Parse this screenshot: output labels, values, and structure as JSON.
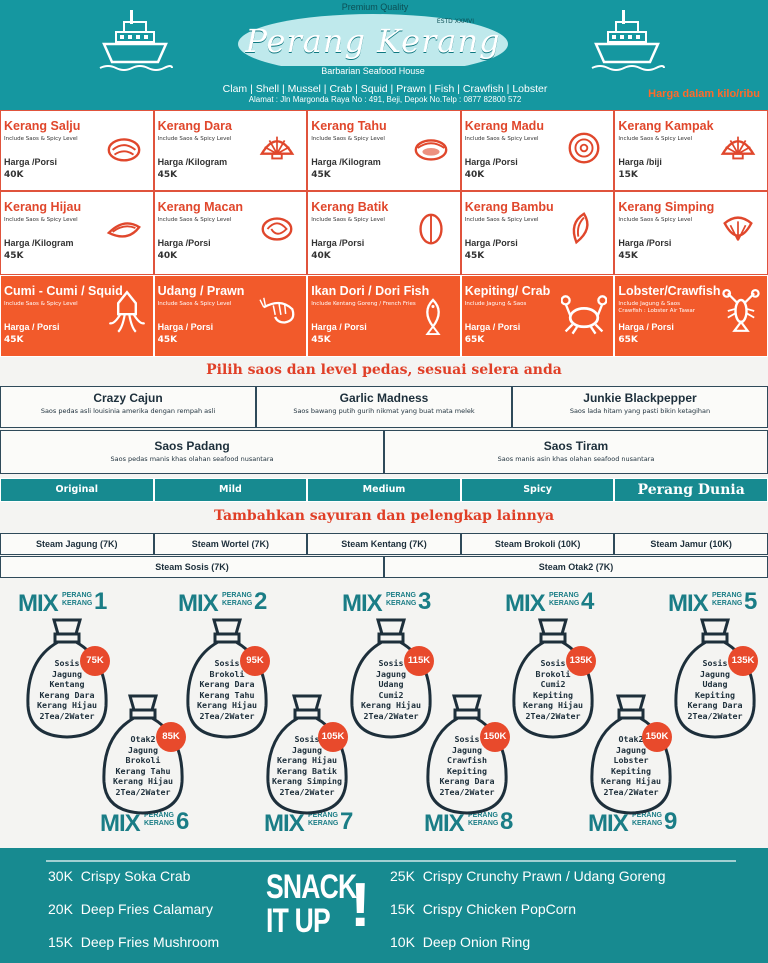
{
  "header": {
    "premium": "Premium Quality",
    "brand": "Perang Kerang",
    "estd": "ESTD XXMVI",
    "tagline": "Barbarian Seafood House",
    "categories": "Clam | Shell | Mussel | Crab | Squid | Prawn | Fish | Crawfish | Lobster",
    "address": "Alamat : Jln Margonda Raya No : 491, Beji, Depok No.Telp : 0877 82800 572",
    "price_note": "Harga dalam kilo/ribu"
  },
  "menu": {
    "row1": [
      {
        "name": "Kerang Salju",
        "sub": "Include Saos & Spicy Level",
        "price_label": "Harga /Porsi",
        "price": "40K",
        "icon": "clam-icon"
      },
      {
        "name": "Kerang Dara",
        "sub": "Include Saos & Spicy Level",
        "price_label": "Harga /Kilogram",
        "price": "45K",
        "icon": "scallop-icon"
      },
      {
        "name": "Kerang Tahu",
        "sub": "Include Saos & Spicy Level",
        "price_label": "Harga /Kilogram",
        "price": "45K",
        "icon": "clam-icon"
      },
      {
        "name": "Kerang Madu",
        "sub": "Include Saos & Spicy Level",
        "price_label": "Harga /Porsi",
        "price": "40K",
        "icon": "spiral-shell-icon"
      },
      {
        "name": "Kerang Kampak",
        "sub": "Include Saos & Spicy Level",
        "price_label": "Harga /biji",
        "price": "15K",
        "icon": "scallop-icon"
      }
    ],
    "row2": [
      {
        "name": "Kerang Hijau",
        "sub": "Include Saos & Spicy Level",
        "price_label": "Harga /Kilogram",
        "price": "45K",
        "icon": "mussel-icon"
      },
      {
        "name": "Kerang Macan",
        "sub": "Include Saos & Spicy Level",
        "price_label": "Harga /Porsi",
        "price": "40K",
        "icon": "snail-shell-icon"
      },
      {
        "name": "Kerang Batik",
        "sub": "Include Saos & Spicy Level",
        "price_label": "Harga /Porsi",
        "price": "40K",
        "icon": "clam-icon"
      },
      {
        "name": "Kerang Bambu",
        "sub": "Include Saos & Spicy Level",
        "price_label": "Harga /Porsi",
        "price": "45K",
        "icon": "razor-clam-icon"
      },
      {
        "name": "Kerang Simping",
        "sub": "Include Saos & Spicy Level",
        "price_label": "Harga /Porsi",
        "price": "45K",
        "icon": "scallop-icon"
      }
    ],
    "row3": [
      {
        "name": "Cumi - Cumi / Squid",
        "sub": "Include Saos & Spicy Level",
        "price_label": "Harga / Porsi",
        "price": "45K",
        "icon": "squid-icon"
      },
      {
        "name": "Udang / Prawn",
        "sub": "Include Saos & Spicy Level",
        "price_label": "Harga / Porsi",
        "price": "45K",
        "icon": "shrimp-icon"
      },
      {
        "name": "Ikan Dori / Dori Fish",
        "sub": "Include Kentang Goreng / French Fries",
        "price_label": "Harga / Porsi",
        "price": "45K",
        "icon": "fish-icon"
      },
      {
        "name": "Kepiting/ Crab",
        "sub": "Include Jagung & Saos",
        "price_label": "Harga / Porsi",
        "price": "65K",
        "icon": "crab-icon"
      },
      {
        "name": "Lobster/Crawfish",
        "sub": "Include Jagung & Saos",
        "sub2": "Crawfish : Lobster Air Tawar",
        "price_label": "Harga / Porsi",
        "price": "65K",
        "icon": "lobster-icon"
      }
    ]
  },
  "sauce_banner": "Pilih saos dan level pedas, sesuai selera anda",
  "sauces_row1": [
    {
      "name": "Crazy Cajun",
      "desc": "Saos pedas asli louisinia amerika dengan rempah asli"
    },
    {
      "name": "Garlic Madness",
      "desc": "Saos bawang putih gurih nikmat yang buat mata melek"
    },
    {
      "name": "Junkie Blackpepper",
      "desc": "Saos lada hitam yang pasti bikin ketagihan"
    }
  ],
  "sauces_row2": [
    {
      "name": "Saos Padang",
      "desc": "Saos pedas manis khas olahan seafood nusantara"
    },
    {
      "name": "Saos Tiram",
      "desc": "Saos manis asin khas olahan seafood nusantara"
    }
  ],
  "levels": [
    "Original",
    "Mild",
    "Medium",
    "Spicy",
    "Perang Dunia"
  ],
  "veg_banner": "Tambahkan sayuran dan pelengkap lainnya",
  "veg_row1": [
    "Steam Jagung (7K)",
    "Steam Wortel (7K)",
    "Steam Kentang (7K)",
    "Steam Brokoli (10K)",
    "Steam Jamur (10K)"
  ],
  "veg_row2": [
    "Steam Sosis (7K)",
    "Steam Otak2 (7K)"
  ],
  "mix": {
    "prefix": "MIX",
    "word1": "PERANG",
    "word2": "KERANG",
    "packs": [
      {
        "num": "1",
        "price": "75K",
        "items": [
          "Sosis",
          "Jagung",
          "Kentang",
          "Kerang Dara",
          "Kerang Hijau",
          "2Tea/2Water"
        ]
      },
      {
        "num": "2",
        "price": "95K",
        "items": [
          "Sosis",
          "Brokoli",
          "Kerang Dara",
          "Kerang Tahu",
          "Kerang Hijau",
          "2Tea/2Water"
        ]
      },
      {
        "num": "3",
        "price": "115K",
        "items": [
          "Sosis",
          "Jagung",
          "Udang",
          "Cumi2",
          "Kerang Hijau",
          "2Tea/2Water"
        ]
      },
      {
        "num": "4",
        "price": "135K",
        "items": [
          "Sosis",
          "Brokoli",
          "Cumi2",
          "Kepiting",
          "Kerang Hijau",
          "2Tea/2Water"
        ]
      },
      {
        "num": "5",
        "price": "135K",
        "items": [
          "Sosis",
          "Jagung",
          "Udang",
          "Kepiting",
          "Kerang Dara",
          "2Tea/2Water"
        ]
      },
      {
        "num": "6",
        "price": "85K",
        "items": [
          "Otak2",
          "Jagung",
          "Brokoli",
          "Kerang Tahu",
          "Kerang Hijau",
          "2Tea/2Water"
        ]
      },
      {
        "num": "7",
        "price": "105K",
        "items": [
          "Sosis",
          "Jagung",
          "Kerang Hijau",
          "Kerang Batik",
          "Kerang Simping",
          "2Tea/2Water"
        ]
      },
      {
        "num": "8",
        "price": "150K",
        "items": [
          "Sosis",
          "Jagung",
          "Crawfish",
          "Kepiting",
          "Kerang Dara",
          "2Tea/2Water"
        ]
      },
      {
        "num": "9",
        "price": "150K",
        "items": [
          "Otak2",
          "Jagung",
          "Lobster",
          "Kepiting",
          "Kerang Hijau",
          "2Tea/2Water"
        ]
      }
    ]
  },
  "snacks": {
    "logo_line1": "SNACK",
    "logo_line2": "IT UP",
    "logo_mark": "!",
    "left": [
      {
        "price": "30K",
        "name": "Crispy Soka Crab"
      },
      {
        "price": "20K",
        "name": "Deep Fries Calamary"
      },
      {
        "price": "15K",
        "name": "Deep Fries Mushroom"
      }
    ],
    "right": [
      {
        "price": "25K",
        "name": "Crispy Crunchy Prawn / Udang Goreng"
      },
      {
        "price": "15K",
        "name": "Crispy Chicken PopCorn"
      },
      {
        "price": "10K",
        "name": "Deep Onion Ring"
      }
    ]
  },
  "colors": {
    "teal": "#1597a0",
    "teal_dark": "#178a90",
    "orange": "#f25a2b",
    "red_text": "#e0472c"
  }
}
